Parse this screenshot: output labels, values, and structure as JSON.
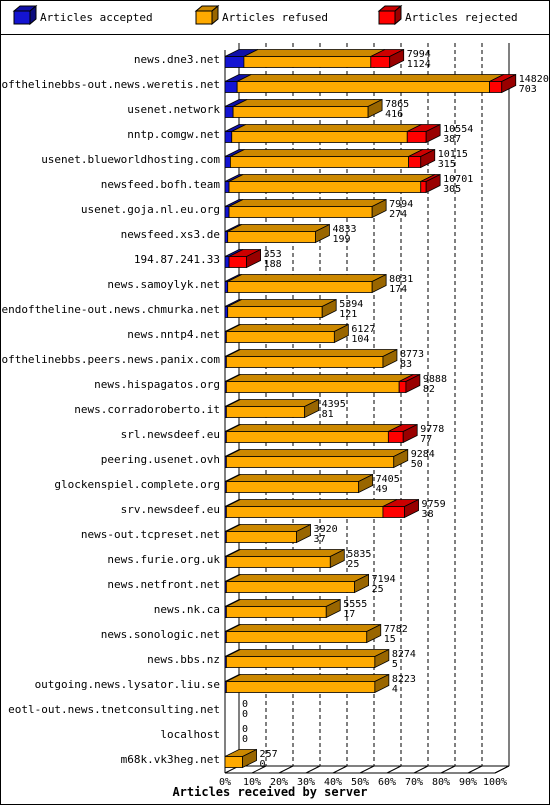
{
  "chart_data": {
    "type": "bar",
    "orientation": "horizontal",
    "stacked": true,
    "title": "",
    "xlabel": "Articles received by server",
    "ylabel": "",
    "xlim": [
      0,
      100
    ],
    "x_ticks": [
      "0%",
      "10%",
      "20%",
      "30%",
      "40%",
      "50%",
      "60%",
      "70%",
      "80%",
      "90%",
      "100%"
    ],
    "grid": "vertical-dashed",
    "legend_position": "top",
    "legend": [
      {
        "name": "Articles accepted",
        "color": "#1414d2"
      },
      {
        "name": "Articles refused",
        "color": "#ffaa00"
      },
      {
        "name": "Articles rejected",
        "color": "#ff0000"
      }
    ],
    "colors": {
      "accepted": "#1414d2",
      "refused": "#ffaa00",
      "rejected": "#ff0000"
    },
    "servers": [
      {
        "name": "news.dne3.net",
        "accepted_pct": 7,
        "refused_pct": 47,
        "rejected_pct": 7,
        "total": "7994",
        "second": "1124"
      },
      {
        "name": "endofthelinebbs-out.news.weretis.net",
        "accepted_pct": 4.5,
        "refused_pct": 93.5,
        "rejected_pct": 4.5,
        "total": "14820",
        "second": "703"
      },
      {
        "name": "usenet.network",
        "accepted_pct": 3,
        "refused_pct": 50,
        "rejected_pct": 0,
        "total": "7865",
        "second": "416"
      },
      {
        "name": "nntp.comgw.net",
        "accepted_pct": 2.5,
        "refused_pct": 65,
        "rejected_pct": 7,
        "total": "10554",
        "second": "387"
      },
      {
        "name": "usenet.blueworldhosting.com",
        "accepted_pct": 2,
        "refused_pct": 66,
        "rejected_pct": 4.5,
        "total": "10115",
        "second": "315"
      },
      {
        "name": "newsfeed.bofh.team",
        "accepted_pct": 1.5,
        "refused_pct": 71,
        "rejected_pct": 2,
        "total": "10701",
        "second": "305"
      },
      {
        "name": "usenet.goja.nl.eu.org",
        "accepted_pct": 1.5,
        "refused_pct": 53,
        "rejected_pct": 0,
        "total": "7994",
        "second": "274"
      },
      {
        "name": "newsfeed.xs3.de",
        "accepted_pct": 1,
        "refused_pct": 32.5,
        "rejected_pct": 0,
        "total": "4833",
        "second": "199"
      },
      {
        "name": "194.87.241.33",
        "accepted_pct": 1.5,
        "refused_pct": 0,
        "rejected_pct": 6.5,
        "total": "353",
        "second": "188"
      },
      {
        "name": "news.samoylyk.net",
        "accepted_pct": 1,
        "refused_pct": 53.5,
        "rejected_pct": 0,
        "total": "8031",
        "second": "174"
      },
      {
        "name": "endoftheline-out.news.chmurka.net",
        "accepted_pct": 1,
        "refused_pct": 35,
        "rejected_pct": 0,
        "total": "5394",
        "second": "121"
      },
      {
        "name": "news.nntp4.net",
        "accepted_pct": 0.5,
        "refused_pct": 40,
        "rejected_pct": 0,
        "total": "6127",
        "second": "104"
      },
      {
        "name": "endofthelinebbs.peers.news.panix.com",
        "accepted_pct": 0.5,
        "refused_pct": 58,
        "rejected_pct": 0,
        "total": "8773",
        "second": "83"
      },
      {
        "name": "news.hispagatos.org",
        "accepted_pct": 0.5,
        "refused_pct": 64,
        "rejected_pct": 2.5,
        "total": "9888",
        "second": "82"
      },
      {
        "name": "news.corradoroberto.it",
        "accepted_pct": 0.5,
        "refused_pct": 29,
        "rejected_pct": 0,
        "total": "4395",
        "second": "81"
      },
      {
        "name": "srl.newsdeef.eu",
        "accepted_pct": 0.5,
        "refused_pct": 60,
        "rejected_pct": 5.5,
        "total": "9778",
        "second": "77"
      },
      {
        "name": "peering.usenet.ovh",
        "accepted_pct": 0.5,
        "refused_pct": 62,
        "rejected_pct": 0,
        "total": "9284",
        "second": "50"
      },
      {
        "name": "glockenspiel.complete.org",
        "accepted_pct": 0.5,
        "refused_pct": 49,
        "rejected_pct": 0,
        "total": "7405",
        "second": "49"
      },
      {
        "name": "srv.newsdeef.eu",
        "accepted_pct": 0.5,
        "refused_pct": 58,
        "rejected_pct": 8,
        "total": "9759",
        "second": "38"
      },
      {
        "name": "news-out.tcpreset.net",
        "accepted_pct": 0.5,
        "refused_pct": 26,
        "rejected_pct": 0,
        "total": "3920",
        "second": "37"
      },
      {
        "name": "news.furie.org.uk",
        "accepted_pct": 0.5,
        "refused_pct": 38.5,
        "rejected_pct": 0,
        "total": "5835",
        "second": "25"
      },
      {
        "name": "news.netfront.net",
        "accepted_pct": 0.5,
        "refused_pct": 47.5,
        "rejected_pct": 0,
        "total": "7194",
        "second": "25"
      },
      {
        "name": "news.nk.ca",
        "accepted_pct": 0.5,
        "refused_pct": 37,
        "rejected_pct": 0,
        "total": "5555",
        "second": "17"
      },
      {
        "name": "news.sonologic.net",
        "accepted_pct": 0.5,
        "refused_pct": 52,
        "rejected_pct": 0,
        "total": "7782",
        "second": "15"
      },
      {
        "name": "news.bbs.nz",
        "accepted_pct": 0.5,
        "refused_pct": 55,
        "rejected_pct": 0,
        "total": "8274",
        "second": "5"
      },
      {
        "name": "outgoing.news.lysator.liu.se",
        "accepted_pct": 0.5,
        "refused_pct": 55,
        "rejected_pct": 0,
        "total": "8223",
        "second": "4"
      },
      {
        "name": "eotl-out.news.tnetconsulting.net",
        "accepted_pct": 0,
        "refused_pct": 0,
        "rejected_pct": 0,
        "total": "0",
        "second": "0"
      },
      {
        "name": "localhost",
        "accepted_pct": 0,
        "refused_pct": 0,
        "rejected_pct": 0,
        "total": "0",
        "second": "0"
      },
      {
        "name": "m68k.vk3heg.net",
        "accepted_pct": 0,
        "refused_pct": 6.5,
        "rejected_pct": 0,
        "total": "257",
        "second": "0"
      }
    ]
  }
}
